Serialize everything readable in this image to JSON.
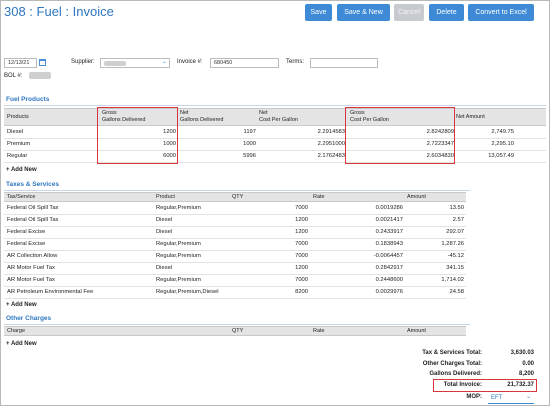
{
  "header": {
    "title": "308 : Fuel : Invoice",
    "buttons": {
      "save": "Save",
      "save_new": "Save & New",
      "cancel": "Cancel",
      "delete": "Delete",
      "convert": "Convert to Excel"
    }
  },
  "form": {
    "date": "12/13/21",
    "supplier_label": "Supplier:",
    "invoice_label": "Invoice #:",
    "invoice_value": "680450",
    "terms_label": "Terms:",
    "terms_value": "",
    "bol_label": "BOL #:"
  },
  "fuel_products": {
    "title": "Fuel Products",
    "headers": {
      "products": "Products",
      "gross_1": "Gross",
      "gross_2": "Gallons Delivered",
      "net_1": "Net",
      "net_2": "Gallons Delivered",
      "net_cost_1": "Net",
      "net_cost_2": "Cost Per Gallon",
      "gross_cost_1": "Gross",
      "gross_cost_2": "Cost Per Gallon",
      "net_amount": "Net Amount"
    },
    "rows": [
      {
        "product": "Diesel",
        "gross_gal": "1200",
        "net_gal": "1197",
        "net_cost": "2.2914583",
        "gross_cost": "2.8242809",
        "amount": "2,749.75"
      },
      {
        "product": "Premium",
        "gross_gal": "1000",
        "net_gal": "1000",
        "net_cost": "2.2951000",
        "gross_cost": "2.7223347",
        "amount": "2,295.10"
      },
      {
        "product": "Regular",
        "gross_gal": "6000",
        "net_gal": "5996",
        "net_cost": "2.1762483",
        "gross_cost": "2.6034830",
        "amount": "13,057.49"
      }
    ],
    "add_label": "+ Add New"
  },
  "taxes": {
    "title": "Taxes & Services",
    "headers": {
      "tax": "Tax/Service",
      "product": "Product",
      "qty": "QTY",
      "rate": "Rate",
      "amount": "Amount"
    },
    "rows": [
      {
        "tax": "Federal Oil Spill Tax",
        "product": "Regular,Premium",
        "qty": "7000",
        "rate": "0.0019286",
        "amount": "13.50"
      },
      {
        "tax": "Federal Oil Spill Tax",
        "product": "Diesel",
        "qty": "1200",
        "rate": "0.0021417",
        "amount": "2.57"
      },
      {
        "tax": "Federal Excise",
        "product": "Diesel",
        "qty": "1200",
        "rate": "0.2433917",
        "amount": "292.07"
      },
      {
        "tax": "Federal Excise",
        "product": "Regular,Premium",
        "qty": "7000",
        "rate": "0.1838943",
        "amount": "1,287.26"
      },
      {
        "tax": "AR Collection Allow",
        "product": "Regular,Premium",
        "qty": "7000",
        "rate": "-0.0064457",
        "amount": "-45.12"
      },
      {
        "tax": "AR Motor Fuel Tax",
        "product": "Diesel",
        "qty": "1200",
        "rate": "0.2842917",
        "amount": "341.15"
      },
      {
        "tax": "AR Motor Fuel Tax",
        "product": "Regular,Premium",
        "qty": "7000",
        "rate": "0.2448600",
        "amount": "1,714.02"
      },
      {
        "tax": "AR Petroleum Environmental Fee",
        "product": "Regular,Premium,Diesel",
        "qty": "8200",
        "rate": "0.0029976",
        "amount": "24.58"
      }
    ],
    "add_label": "+ Add New"
  },
  "other_charges": {
    "title": "Other Charges",
    "headers": {
      "charge": "Charge",
      "qty": "QTY",
      "rate": "Rate",
      "amount": "Amount"
    },
    "add_label": "+ Add New"
  },
  "totals": {
    "tax_label": "Tax & Services Total:",
    "tax_value": "3,630.03",
    "other_label": "Other Charges Total:",
    "other_value": "0.00",
    "gallons_label": "Gallons Delivered:",
    "gallons_value": "8,200",
    "invoice_label": "Total Invoice:",
    "invoice_value": "21,732.37",
    "mop_label": "MOP:",
    "mop_value": "EFT"
  }
}
